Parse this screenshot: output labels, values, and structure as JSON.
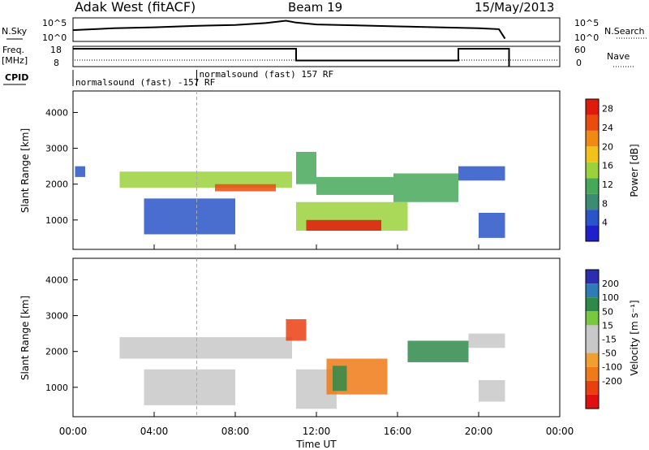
{
  "header": {
    "station": "Adak West (fitACF)",
    "beam": "Beam 19",
    "date": "15/May/2013"
  },
  "strip_labels": {
    "nsky": "N.Sky",
    "freq": "Freq.",
    "freq_unit": "[MHz]",
    "cpid": "CPID",
    "nsearch": "N.Search",
    "nave": "Nave",
    "nsky_top": "10^5",
    "nsky_bottom": "10^0",
    "nsearch_top": "10^5",
    "nsearch_bottom": "10^0",
    "freq_top": "18",
    "freq_bottom": "8",
    "nave_top": "60",
    "nave_bottom": "0"
  },
  "cpid_segments": [
    {
      "label": "normalsound (fast) -157 RF",
      "start_hour": 0.0,
      "end_hour": 6.1
    },
    {
      "label": "normalsound (fast) 157 RF",
      "start_hour": 6.1,
      "end_hour": 21.5
    }
  ],
  "colors": {
    "power_scale": [
      "#1f1fcc",
      "#2a55c8",
      "#3b8c72",
      "#47a85a",
      "#9bd13c",
      "#f2c21a",
      "#f08a13",
      "#ea4c10",
      "#e01a0c"
    ],
    "velocity_scale": [
      "#2a2fb0",
      "#2e7bb8",
      "#2f8a4a",
      "#78c940",
      "#c8c8c8",
      "#c8c8c8",
      "#f0a030",
      "#f07a18",
      "#ea4010",
      "#e01010"
    ]
  },
  "chart_data": [
    {
      "type": "line",
      "name": "N.Sky",
      "x": [
        0.0,
        0.5,
        2.0,
        4.0,
        6.0,
        8.0,
        9.5,
        10.5,
        11.0,
        12.0,
        14.0,
        16.0,
        18.0,
        20.0,
        21.0,
        21.3
      ],
      "y_log10": [
        2.4,
        2.5,
        2.8,
        3.0,
        3.3,
        3.5,
        3.9,
        4.4,
        4.0,
        3.6,
        3.4,
        3.2,
        3.0,
        2.8,
        2.6,
        0.6
      ],
      "ylim_log10": [
        0,
        5
      ],
      "xlim_hours": [
        0,
        24
      ]
    },
    {
      "type": "line",
      "name": "Freq.",
      "x": [
        0.0,
        6.1,
        6.1,
        11.0,
        11.0,
        19.0,
        19.0,
        21.5,
        21.5
      ],
      "y": [
        16.8,
        16.8,
        16.8,
        16.8,
        11.0,
        11.0,
        16.8,
        16.8,
        8.0
      ],
      "ylim": [
        8,
        18
      ],
      "xlim_hours": [
        0,
        24
      ]
    },
    {
      "type": "heatmap",
      "name": "Power",
      "xlabel": "",
      "ylabel": "Slant Range [km]",
      "colorbar_label": "Power [dB]",
      "colorbar_ticks": [
        4,
        8,
        12,
        16,
        20,
        24,
        28
      ],
      "colorbar_range": [
        0,
        30
      ],
      "ylim": [
        180,
        4600
      ],
      "yticks": [
        1000,
        2000,
        3000,
        4000
      ],
      "xlim_hours": [
        0,
        24
      ],
      "echo_regions": [
        {
          "from_hour": 0.1,
          "to_hour": 0.6,
          "range_min": 2200,
          "range_max": 2500,
          "power_db": 6
        },
        {
          "from_hour": 2.3,
          "to_hour": 10.8,
          "range_min": 1900,
          "range_max": 2350,
          "power_db": 16
        },
        {
          "from_hour": 7.0,
          "to_hour": 10.0,
          "range_min": 1800,
          "range_max": 2000,
          "power_db": 24
        },
        {
          "from_hour": 3.5,
          "to_hour": 8.0,
          "range_min": 600,
          "range_max": 1600,
          "power_db": 6
        },
        {
          "from_hour": 11.0,
          "to_hour": 16.5,
          "range_min": 700,
          "range_max": 1500,
          "power_db": 16
        },
        {
          "from_hour": 11.5,
          "to_hour": 15.2,
          "range_min": 700,
          "range_max": 1000,
          "power_db": 28
        },
        {
          "from_hour": 11.0,
          "to_hour": 12.0,
          "range_min": 2000,
          "range_max": 2900,
          "power_db": 10
        },
        {
          "from_hour": 12.0,
          "to_hour": 15.8,
          "range_min": 1700,
          "range_max": 2200,
          "power_db": 12
        },
        {
          "from_hour": 15.8,
          "to_hour": 19.0,
          "range_min": 1500,
          "range_max": 2300,
          "power_db": 10
        },
        {
          "from_hour": 19.0,
          "to_hour": 21.3,
          "range_min": 2100,
          "range_max": 2500,
          "power_db": 4
        },
        {
          "from_hour": 20.0,
          "to_hour": 21.3,
          "range_min": 500,
          "range_max": 1200,
          "power_db": 6
        }
      ]
    },
    {
      "type": "heatmap",
      "name": "Velocity",
      "xlabel": "Time UT",
      "ylabel": "Slant Range [km]",
      "colorbar_label": "Velocity [m s⁻¹]",
      "colorbar_ticks": [
        200,
        100,
        50,
        15,
        -15,
        -50,
        -100,
        -200
      ],
      "ylim": [
        180,
        4600
      ],
      "yticks": [
        1000,
        2000,
        3000,
        4000
      ],
      "xlim_hours": [
        0,
        24
      ],
      "xticks": [
        "00:00",
        "04:00",
        "08:00",
        "12:00",
        "16:00",
        "20:00",
        "00:00"
      ],
      "echo_regions": [
        {
          "from_hour": 2.3,
          "to_hour": 10.8,
          "range_min": 1800,
          "range_max": 2400,
          "velocity": 0
        },
        {
          "from_hour": 3.5,
          "to_hour": 8.0,
          "range_min": 500,
          "range_max": 1500,
          "velocity": 0
        },
        {
          "from_hour": 10.5,
          "to_hour": 11.5,
          "range_min": 2300,
          "range_max": 2900,
          "velocity": -150
        },
        {
          "from_hour": 11.0,
          "to_hour": 13.0,
          "range_min": 400,
          "range_max": 1500,
          "velocity": 0
        },
        {
          "from_hour": 12.5,
          "to_hour": 15.5,
          "range_min": 800,
          "range_max": 1800,
          "velocity": -70
        },
        {
          "from_hour": 12.8,
          "to_hour": 13.5,
          "range_min": 900,
          "range_max": 1600,
          "velocity": 40
        },
        {
          "from_hour": 16.5,
          "to_hour": 19.5,
          "range_min": 1700,
          "range_max": 2300,
          "velocity": 30
        },
        {
          "from_hour": 19.5,
          "to_hour": 21.3,
          "range_min": 2100,
          "range_max": 2500,
          "velocity": 0
        },
        {
          "from_hour": 20.0,
          "to_hour": 21.3,
          "range_min": 600,
          "range_max": 1200,
          "velocity": 0
        }
      ]
    }
  ]
}
